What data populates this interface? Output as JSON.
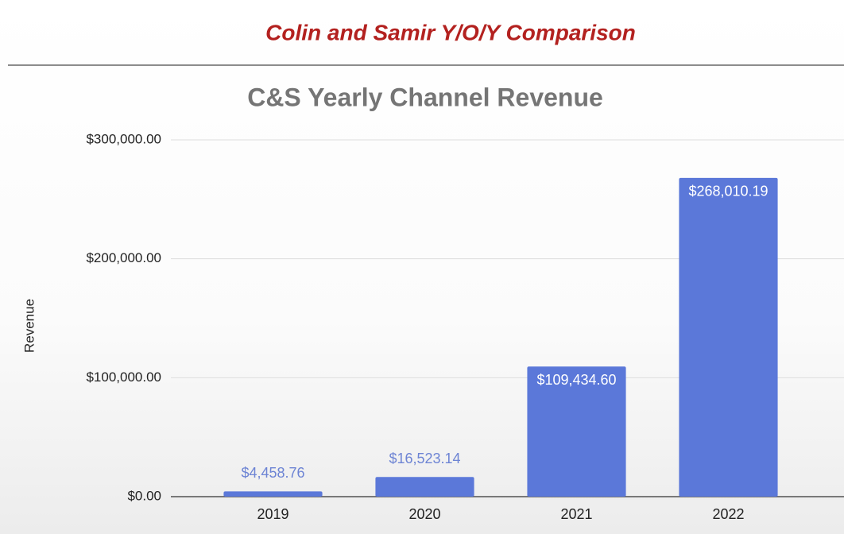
{
  "header": {
    "title": "Colin and Samir Y/O/Y Comparison"
  },
  "chart_data": {
    "type": "bar",
    "title": "C&S Yearly Channel Revenue",
    "y_label": "Revenue",
    "categories": [
      "2019",
      "2020",
      "2021",
      "2022"
    ],
    "values": [
      4458.76,
      16523.14,
      109434.6,
      268010.19
    ],
    "value_labels": [
      "$4,458.76",
      "$16,523.14",
      "$109,434.60",
      "$268,010.19"
    ],
    "color": "#5b78d9",
    "ylim": [
      0,
      300000
    ],
    "yticks": [
      {
        "value": 0,
        "label": "$0.00"
      },
      {
        "value": 100000,
        "label": "$100,000.00"
      },
      {
        "value": 200000,
        "label": "$200,000.00"
      },
      {
        "value": 300000,
        "label": "$300,000.00"
      }
    ],
    "grid": true
  }
}
